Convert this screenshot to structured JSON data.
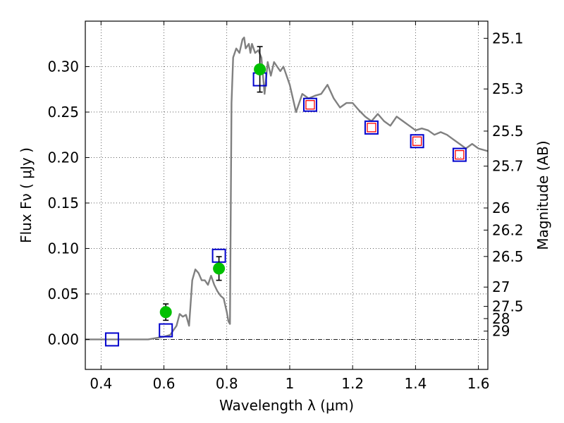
{
  "chart_data": {
    "type": "scatter",
    "xlabel": "Wavelength  λ (μm)",
    "ylabel": "Flux  Fν  ( μJy )",
    "ylabel_right": "Magnitude (AB)",
    "xlim": [
      0.35,
      1.63
    ],
    "ylim": [
      -0.033,
      0.35
    ],
    "grid": true,
    "x_ticks": [
      {
        "value": 0.4,
        "label": "0.4"
      },
      {
        "value": 0.6,
        "label": "0.6"
      },
      {
        "value": 0.8,
        "label": "0.8"
      },
      {
        "value": 1.0,
        "label": "1"
      },
      {
        "value": 1.2,
        "label": "1.2"
      },
      {
        "value": 1.4,
        "label": "1.4"
      },
      {
        "value": 1.6,
        "label": "1.6"
      }
    ],
    "y_ticks": [
      {
        "value": 0.0,
        "label": "0.00"
      },
      {
        "value": 0.05,
        "label": "0.05"
      },
      {
        "value": 0.1,
        "label": "0.10"
      },
      {
        "value": 0.15,
        "label": "0.15"
      },
      {
        "value": 0.2,
        "label": "0.20"
      },
      {
        "value": 0.25,
        "label": "0.25"
      },
      {
        "value": 0.3,
        "label": "0.30"
      }
    ],
    "y2_ticks": [
      {
        "value": 25.1,
        "label": "25.1"
      },
      {
        "value": 25.3,
        "label": "25.3"
      },
      {
        "value": 25.5,
        "label": "25.5"
      },
      {
        "value": 25.7,
        "label": "25.7"
      },
      {
        "value": 26,
        "label": "26"
      },
      {
        "value": 26.2,
        "label": "26.2"
      },
      {
        "value": 26.5,
        "label": "26.5"
      },
      {
        "value": 27,
        "label": "27"
      },
      {
        "value": 27.5,
        "label": "27.5"
      },
      {
        "value": 28,
        "label": "28"
      },
      {
        "value": 29,
        "label": "29"
      }
    ],
    "series": [
      {
        "kind": "line",
        "color": "#808080",
        "x": [
          0.35,
          0.55,
          0.6,
          0.62,
          0.63,
          0.64,
          0.65,
          0.66,
          0.67,
          0.68,
          0.69,
          0.7,
          0.71,
          0.72,
          0.73,
          0.74,
          0.75,
          0.76,
          0.77,
          0.78,
          0.79,
          0.8,
          0.805,
          0.81,
          0.815,
          0.82,
          0.83,
          0.84,
          0.85,
          0.855,
          0.86,
          0.87,
          0.875,
          0.88,
          0.89,
          0.9,
          0.91,
          0.92,
          0.93,
          0.94,
          0.95,
          0.96,
          0.97,
          0.98,
          0.99,
          1.0,
          1.02,
          1.04,
          1.06,
          1.08,
          1.1,
          1.12,
          1.14,
          1.16,
          1.18,
          1.2,
          1.22,
          1.24,
          1.26,
          1.28,
          1.3,
          1.32,
          1.34,
          1.36,
          1.38,
          1.4,
          1.42,
          1.44,
          1.46,
          1.48,
          1.5,
          1.52,
          1.54,
          1.56,
          1.58,
          1.6,
          1.63
        ],
        "y": [
          0.0,
          0.0,
          0.003,
          0.005,
          0.01,
          0.015,
          0.028,
          0.025,
          0.027,
          0.015,
          0.065,
          0.077,
          0.073,
          0.065,
          0.065,
          0.06,
          0.07,
          0.06,
          0.053,
          0.048,
          0.045,
          0.03,
          0.02,
          0.017,
          0.26,
          0.31,
          0.32,
          0.315,
          0.33,
          0.332,
          0.32,
          0.325,
          0.315,
          0.325,
          0.315,
          0.318,
          0.31,
          0.27,
          0.305,
          0.29,
          0.305,
          0.3,
          0.295,
          0.3,
          0.29,
          0.28,
          0.25,
          0.27,
          0.265,
          0.268,
          0.27,
          0.28,
          0.265,
          0.255,
          0.26,
          0.26,
          0.252,
          0.245,
          0.24,
          0.248,
          0.24,
          0.235,
          0.245,
          0.24,
          0.235,
          0.23,
          0.232,
          0.23,
          0.225,
          0.228,
          0.225,
          0.22,
          0.215,
          0.21,
          0.215,
          0.21,
          0.207
        ]
      },
      {
        "kind": "markers",
        "marker": "open-square",
        "color": "#0000cc",
        "x": [
          0.435,
          0.606,
          0.775,
          0.905,
          1.065,
          1.26,
          1.405,
          1.54
        ],
        "y": [
          0.0,
          0.01,
          0.092,
          0.286,
          0.258,
          0.233,
          0.218,
          0.203
        ]
      },
      {
        "kind": "markers",
        "marker": "open-square-small",
        "color": "#ff0000",
        "x": [
          1.065,
          1.26,
          1.405,
          1.54
        ],
        "y": [
          0.258,
          0.233,
          0.218,
          0.203
        ]
      },
      {
        "kind": "markers",
        "marker": "filled-circle",
        "color": "#00c000",
        "x": [
          0.606,
          0.775,
          0.905
        ],
        "y": [
          0.03,
          0.078,
          0.297
        ],
        "yerr": [
          0.009,
          0.013,
          0.025
        ]
      }
    ]
  }
}
